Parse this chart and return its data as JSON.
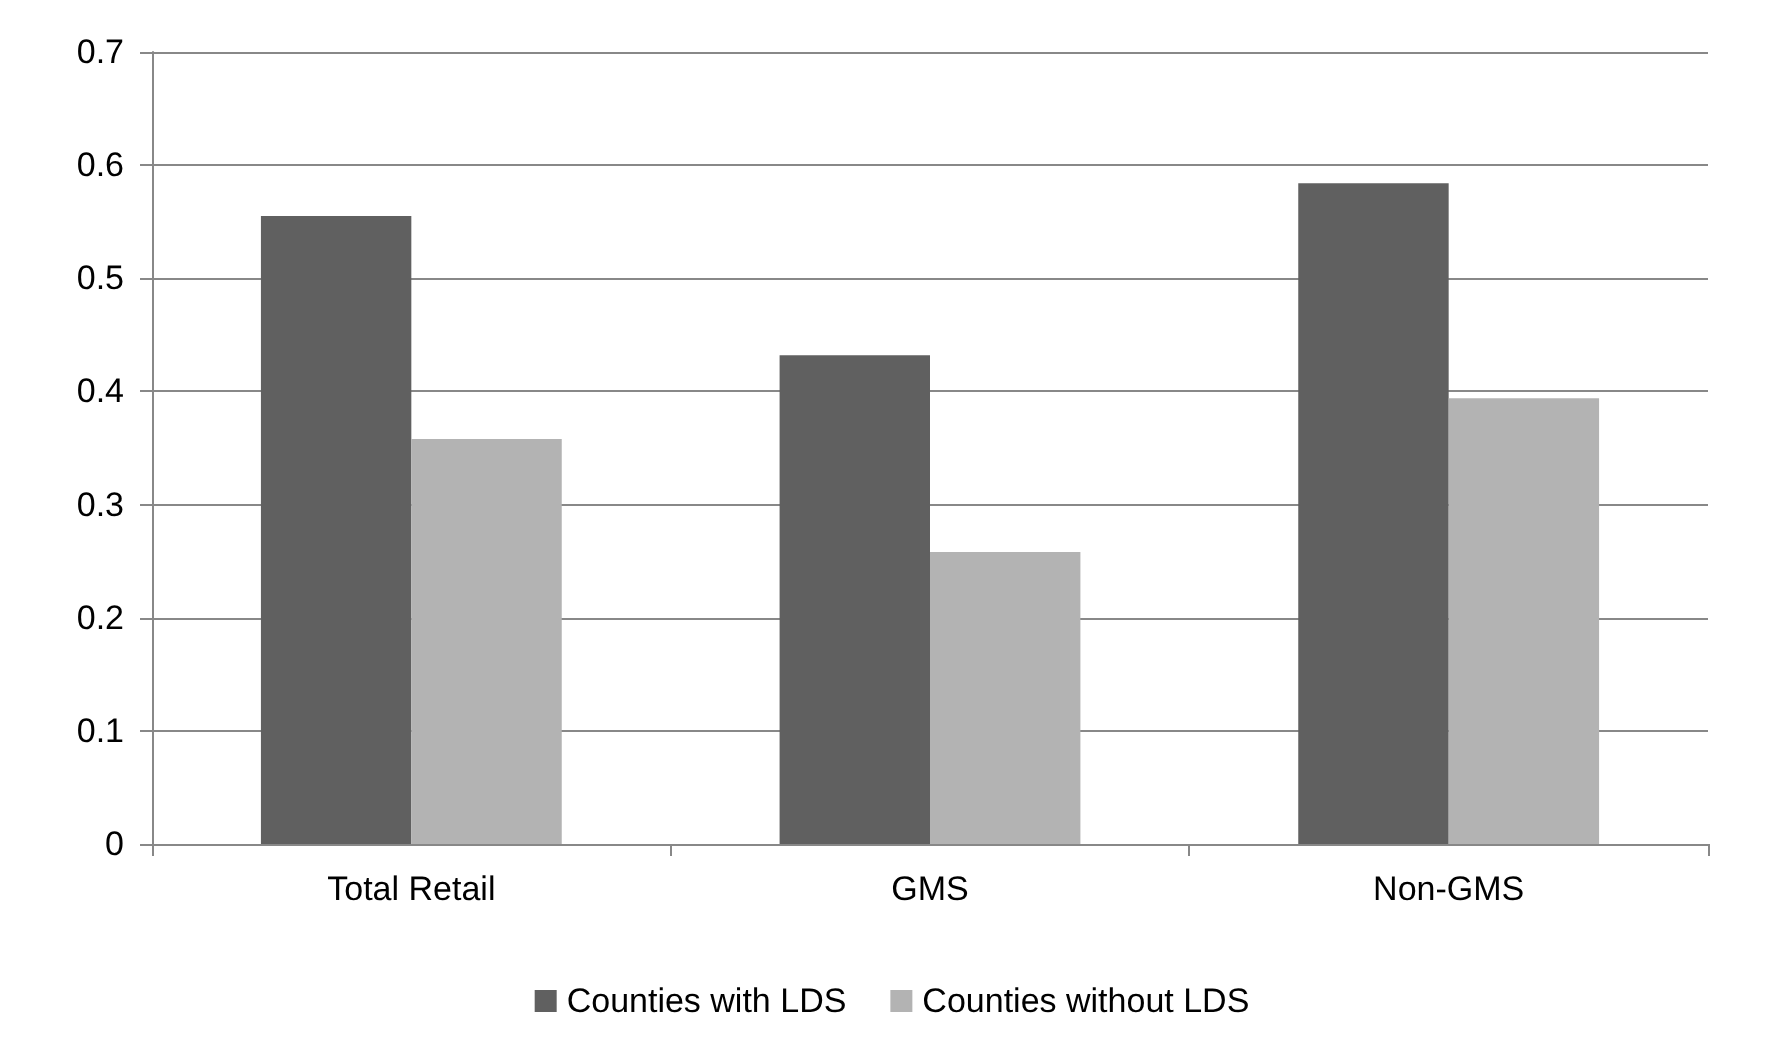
{
  "chart_data": {
    "type": "bar",
    "categories": [
      "Total Retail",
      "GMS",
      "Non-GMS"
    ],
    "series": [
      {
        "name": "Counties with LDS",
        "color": "#606060",
        "values": [
          0.555,
          0.432,
          0.584
        ]
      },
      {
        "name": "Counties without LDS",
        "color": "#b3b3b3",
        "values": [
          0.358,
          0.258,
          0.394
        ]
      }
    ],
    "ylim": [
      0,
      0.7
    ],
    "yticks": [
      0,
      0.1,
      0.2,
      0.3,
      0.4,
      0.5,
      0.6,
      0.7
    ],
    "grid": "y",
    "legend": "bottom"
  }
}
